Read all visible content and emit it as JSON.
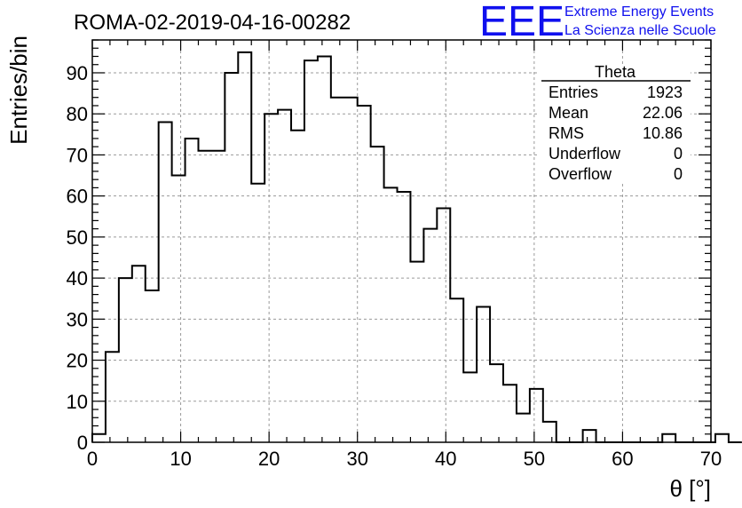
{
  "chart_data": {
    "type": "bar",
    "histogram": true,
    "title": "ROMA-02-2019-04-16-00282",
    "xlabel": "θ [°]",
    "ylabel": "Entries/bin",
    "xlim": [
      0,
      70
    ],
    "ylim": [
      0,
      98
    ],
    "x_ticks": [
      0,
      10,
      20,
      30,
      40,
      50,
      60,
      70
    ],
    "y_ticks": [
      0,
      10,
      20,
      30,
      40,
      50,
      60,
      70,
      80,
      90
    ],
    "grid": true,
    "bin_width": 1.5,
    "bin_start": 0,
    "values": [
      2,
      22,
      40,
      43,
      37,
      78,
      65,
      74,
      71,
      71,
      90,
      95,
      63,
      80,
      81,
      76,
      93,
      94,
      84,
      84,
      82,
      72,
      62,
      61,
      44,
      52,
      57,
      35,
      17,
      33,
      19,
      14,
      7,
      13,
      5,
      0,
      0,
      3,
      0,
      0,
      0,
      0,
      0,
      2,
      0,
      0,
      0,
      2,
      0
    ]
  },
  "stats_box": {
    "header": "Theta",
    "rows": [
      {
        "label": "Entries",
        "value": "1923"
      },
      {
        "label": "Mean",
        "value": "22.06"
      },
      {
        "label": "RMS",
        "value": "10.86"
      },
      {
        "label": "Underflow",
        "value": "0"
      },
      {
        "label": "Overflow",
        "value": "0"
      }
    ]
  },
  "logo": {
    "mark": "EEE",
    "line1": "Extreme Energy Events",
    "line2": "La Scienza nelle Scuole",
    "color": "#1010ee"
  }
}
